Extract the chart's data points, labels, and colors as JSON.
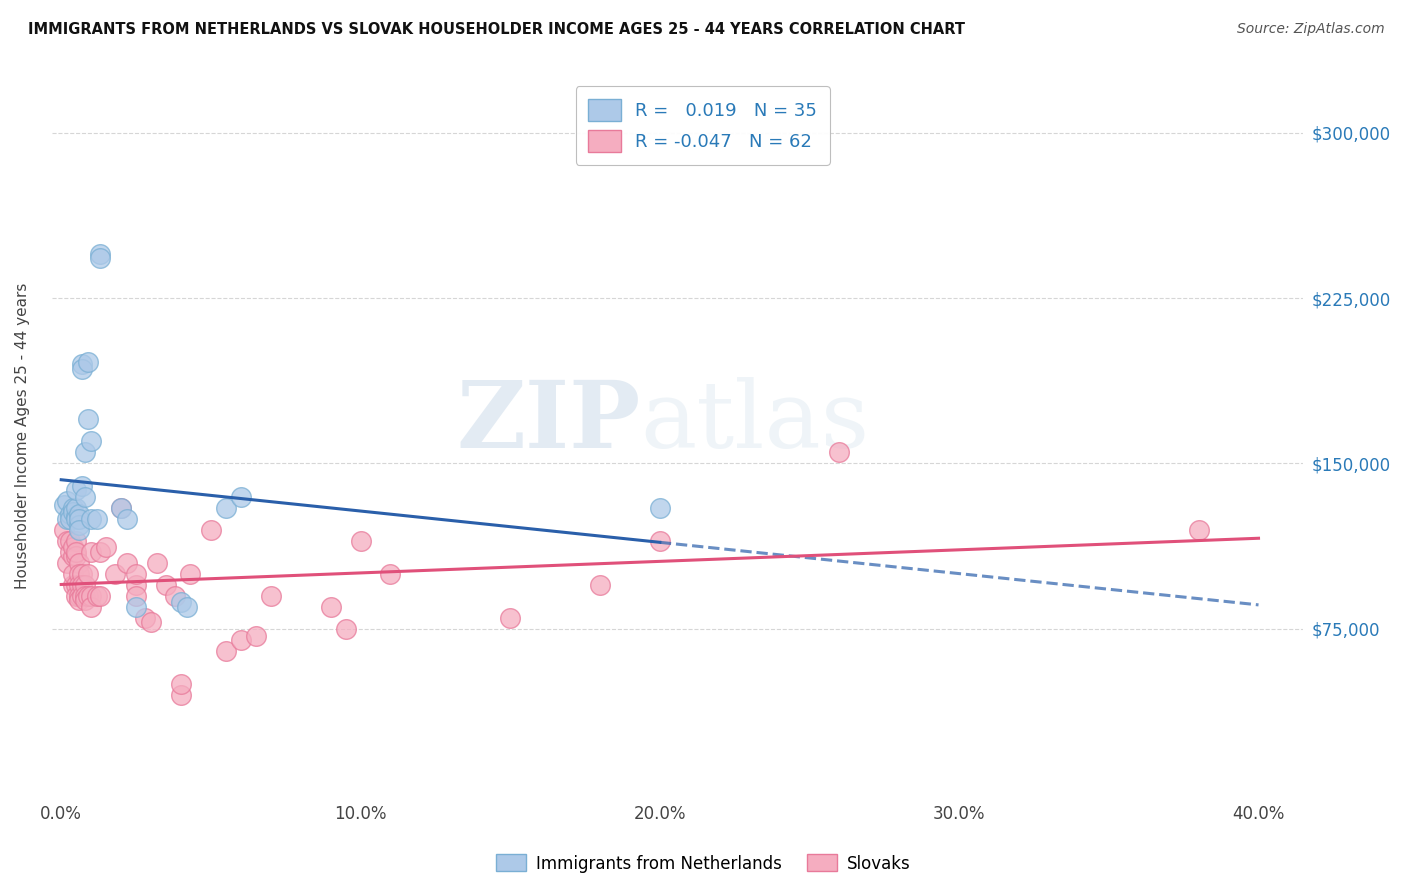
{
  "title": "IMMIGRANTS FROM NETHERLANDS VS SLOVAK HOUSEHOLDER INCOME AGES 25 - 44 YEARS CORRELATION CHART",
  "source": "Source: ZipAtlas.com",
  "ylabel": "Householder Income Ages 25 - 44 years",
  "xlabel_ticks": [
    "0.0%",
    "10.0%",
    "20.0%",
    "30.0%",
    "40.0%"
  ],
  "xlabel_vals": [
    0.0,
    0.1,
    0.2,
    0.3,
    0.4
  ],
  "ylabel_ticks": [
    "$75,000",
    "$150,000",
    "$225,000",
    "$300,000"
  ],
  "ylabel_vals": [
    75000,
    150000,
    225000,
    300000
  ],
  "ylim": [
    0,
    325000
  ],
  "xlim": [
    -0.003,
    0.415
  ],
  "r_netherlands": 0.019,
  "n_netherlands": 35,
  "r_slovak": -0.047,
  "n_slovak": 62,
  "netherlands_color": "#adc9e8",
  "slovak_color": "#f5adc0",
  "netherlands_edge": "#7aafd4",
  "slovak_edge": "#e87a9a",
  "trend_netherlands_color": "#2a5faa",
  "trend_slovak_color": "#e0507a",
  "background_color": "#ffffff",
  "grid_color": "#cccccc",
  "netherlands_x": [
    0.001,
    0.002,
    0.002,
    0.003,
    0.003,
    0.004,
    0.004,
    0.005,
    0.005,
    0.005,
    0.005,
    0.006,
    0.006,
    0.006,
    0.006,
    0.007,
    0.007,
    0.007,
    0.008,
    0.008,
    0.009,
    0.009,
    0.01,
    0.01,
    0.012,
    0.013,
    0.013,
    0.02,
    0.022,
    0.025,
    0.04,
    0.042,
    0.055,
    0.06,
    0.2
  ],
  "netherlands_y": [
    131000,
    133000,
    125000,
    127000,
    125000,
    130000,
    128000,
    126000,
    130000,
    138000,
    125000,
    127000,
    122000,
    125000,
    120000,
    195000,
    193000,
    140000,
    135000,
    155000,
    196000,
    170000,
    125000,
    160000,
    125000,
    245000,
    243000,
    130000,
    125000,
    85000,
    87000,
    85000,
    130000,
    135000,
    130000
  ],
  "slovak_x": [
    0.001,
    0.002,
    0.002,
    0.003,
    0.003,
    0.004,
    0.004,
    0.004,
    0.004,
    0.005,
    0.005,
    0.005,
    0.005,
    0.005,
    0.006,
    0.006,
    0.006,
    0.006,
    0.006,
    0.007,
    0.007,
    0.007,
    0.008,
    0.008,
    0.008,
    0.009,
    0.009,
    0.01,
    0.01,
    0.01,
    0.012,
    0.013,
    0.013,
    0.015,
    0.018,
    0.02,
    0.022,
    0.025,
    0.025,
    0.025,
    0.028,
    0.03,
    0.032,
    0.035,
    0.038,
    0.04,
    0.04,
    0.043,
    0.05,
    0.055,
    0.06,
    0.065,
    0.07,
    0.09,
    0.095,
    0.1,
    0.11,
    0.15,
    0.18,
    0.2,
    0.26,
    0.38
  ],
  "slovak_y": [
    120000,
    115000,
    105000,
    110000,
    115000,
    108000,
    112000,
    95000,
    100000,
    115000,
    108000,
    95000,
    90000,
    110000,
    105000,
    100000,
    95000,
    90000,
    88000,
    100000,
    95000,
    90000,
    95000,
    90000,
    88000,
    100000,
    90000,
    110000,
    90000,
    85000,
    90000,
    110000,
    90000,
    112000,
    100000,
    130000,
    105000,
    95000,
    90000,
    100000,
    80000,
    78000,
    105000,
    95000,
    90000,
    45000,
    50000,
    100000,
    120000,
    65000,
    70000,
    72000,
    90000,
    85000,
    75000,
    115000,
    100000,
    80000,
    95000,
    115000,
    155000,
    120000
  ]
}
